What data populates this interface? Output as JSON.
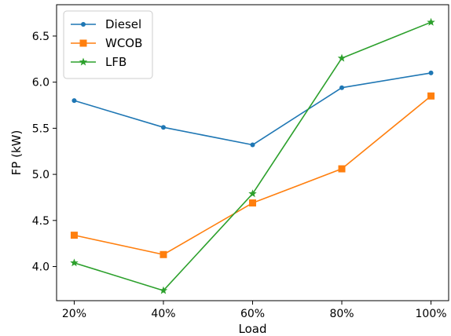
{
  "chart_data": {
    "type": "line",
    "title": "",
    "xlabel": "Load",
    "ylabel": "FP (kW)",
    "categories": [
      "20%",
      "40%",
      "60%",
      "80%",
      "100%"
    ],
    "ylim": [
      3.63,
      6.84
    ],
    "yticks": [
      4.0,
      4.5,
      5.0,
      5.5,
      6.0,
      6.5
    ],
    "ytick_labels": [
      "4.0",
      "4.5",
      "5.0",
      "5.5",
      "6.0",
      "6.5"
    ],
    "grid": false,
    "legend_position": "upper-left",
    "series": [
      {
        "name": "Diesel",
        "color": "#1f77b4",
        "marker": "circle",
        "values": [
          5.8,
          5.51,
          5.32,
          5.94,
          6.1
        ]
      },
      {
        "name": "WCOB",
        "color": "#ff7f0e",
        "marker": "square",
        "values": [
          4.34,
          4.13,
          4.69,
          5.06,
          5.85
        ]
      },
      {
        "name": "LFB",
        "color": "#2ca02c",
        "marker": "star",
        "values": [
          4.04,
          3.74,
          4.79,
          6.26,
          6.65
        ]
      }
    ]
  }
}
